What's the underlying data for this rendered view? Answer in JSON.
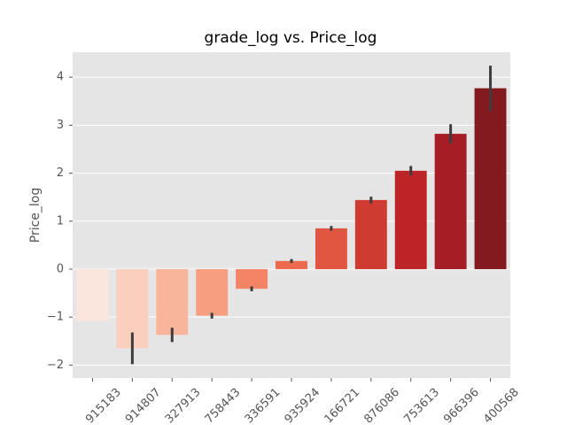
{
  "chart_data": {
    "type": "bar",
    "title": "grade_log vs. Price_log",
    "y_label": "Price_log",
    "categories": [
      "915183",
      "914807",
      "327913",
      "758443",
      "336591",
      "935924",
      "166721",
      "876086",
      "753613",
      "966396",
      "400568"
    ],
    "series": [
      {
        "name": "Price_log",
        "colors": [
          "#fbe6dd",
          "#fbcfbe",
          "#f9b59c",
          "#f69e7f",
          "#f48466",
          "#ee6a4e",
          "#e15640",
          "#cf3b31",
          "#bd2428",
          "#a51d25",
          "#831a20"
        ],
        "values": [
          -1.08,
          -1.65,
          -1.37,
          -0.97,
          -0.41,
          0.17,
          0.85,
          1.44,
          2.05,
          2.82,
          3.77
        ],
        "errors": [
          0,
          0.33,
          0.15,
          0.06,
          0.05,
          0.04,
          0.05,
          0.07,
          0.1,
          0.2,
          0.47
        ]
      }
    ],
    "ylim": [
      -2.27,
      4.52
    ],
    "yticks": [
      {
        "value": -2,
        "label": "−2"
      },
      {
        "value": -1,
        "label": "−1"
      },
      0,
      1,
      2,
      3,
      4
    ],
    "grid": true
  }
}
